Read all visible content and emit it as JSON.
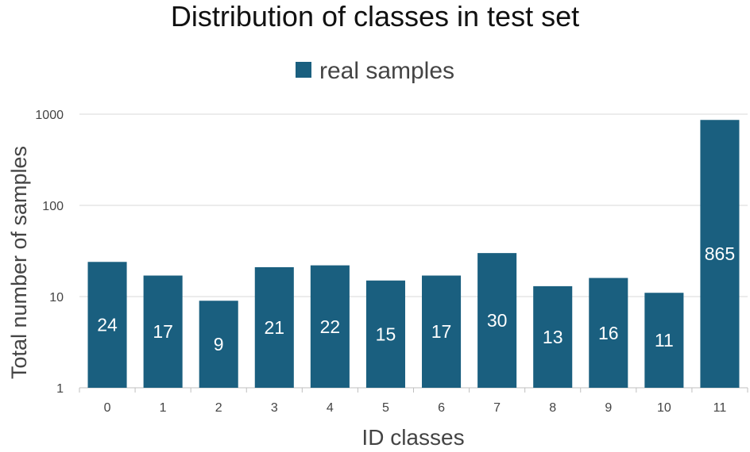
{
  "chart_data": {
    "type": "bar",
    "title": "Distribution of classes in test set",
    "xlabel": "ID classes",
    "ylabel": "Total number of samples",
    "y_scale": "log",
    "ylim": [
      1,
      1000
    ],
    "y_ticks": [
      "1",
      "10",
      "100",
      "1000"
    ],
    "grid": "horizontal",
    "legend_position": "top",
    "categories": [
      "0",
      "1",
      "2",
      "3",
      "4",
      "5",
      "6",
      "7",
      "8",
      "9",
      "10",
      "11"
    ],
    "series": [
      {
        "name": "real samples",
        "color": "#1a5f7f",
        "values": [
          24,
          17,
          9,
          21,
          22,
          15,
          17,
          30,
          13,
          16,
          11,
          865
        ],
        "data_labels": [
          "24",
          "17",
          "9",
          "21",
          "22",
          "15",
          "17",
          "30",
          "13",
          "16",
          "11",
          "865"
        ]
      }
    ]
  }
}
